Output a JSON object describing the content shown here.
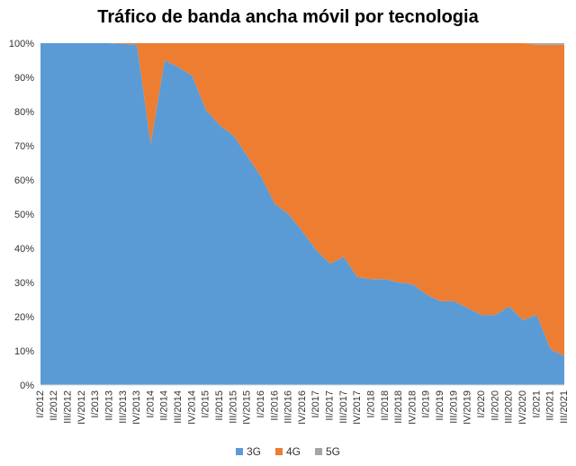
{
  "chart_data": {
    "type": "area",
    "stacked": true,
    "title": "Tráfico de banda ancha móvil por tecnologia",
    "xlabel": "",
    "ylabel": "",
    "ylim": [
      0,
      100
    ],
    "y_ticks": [
      "0%",
      "10%",
      "20%",
      "30%",
      "40%",
      "50%",
      "60%",
      "70%",
      "80%",
      "90%",
      "100%"
    ],
    "categories": [
      "I/2012",
      "II/2012",
      "III/2012",
      "IV/2012",
      "I/2013",
      "II/2013",
      "III/2013",
      "IV/2013",
      "I/2014",
      "II/2014",
      "III/2014",
      "IV/2014",
      "I/2015",
      "II/2015",
      "III/2015",
      "IV/2015",
      "I/2016",
      "II/2016",
      "III/2016",
      "IV/2016",
      "I/2017",
      "II/2017",
      "III/2017",
      "IV/2017",
      "I/2018",
      "II/2018",
      "III/2018",
      "IV/2018",
      "I/2019",
      "II/2019",
      "III/2019",
      "IV/2019",
      "I/2020",
      "II/2020",
      "III/2020",
      "IV/2020",
      "I/2021",
      "II/2021",
      "III/2021"
    ],
    "series": [
      {
        "name": "3G",
        "color": "#5b9bd5",
        "values": [
          100,
          100,
          100,
          100,
          100,
          100,
          99.8,
          99.5,
          70.5,
          95,
          93,
          90.5,
          80.5,
          76,
          73,
          67,
          61,
          53,
          50,
          45,
          39.5,
          35.5,
          37.5,
          31.5,
          31,
          31,
          30,
          29.5,
          26.5,
          24.5,
          24.5,
          22.5,
          20.5,
          20.5,
          23,
          19,
          20.5,
          10.5,
          8.5
        ]
      },
      {
        "name": "4G",
        "color": "#ed7d31",
        "values": [
          0,
          0,
          0,
          0,
          0,
          0,
          0.2,
          0.5,
          29.5,
          5,
          7,
          9.5,
          19.5,
          24,
          27,
          33,
          39,
          47,
          50,
          55,
          60.5,
          64.5,
          62.5,
          68.5,
          69,
          69,
          70,
          70.5,
          73.5,
          75.5,
          75.5,
          77.5,
          79.5,
          79.5,
          77,
          81,
          79,
          89,
          91
        ]
      },
      {
        "name": "5G",
        "color": "#a5a5a5",
        "values": [
          0,
          0,
          0,
          0,
          0,
          0,
          0,
          0,
          0,
          0,
          0,
          0,
          0,
          0,
          0,
          0,
          0,
          0,
          0,
          0,
          0,
          0,
          0,
          0,
          0,
          0,
          0,
          0,
          0,
          0,
          0,
          0,
          0,
          0,
          0,
          0,
          0.5,
          0.5,
          0.5
        ]
      }
    ],
    "legend_position": "bottom",
    "grid": false
  }
}
